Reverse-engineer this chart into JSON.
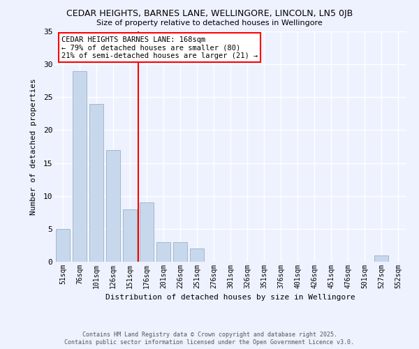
{
  "title": "CEDAR HEIGHTS, BARNES LANE, WELLINGORE, LINCOLN, LN5 0JB",
  "subtitle": "Size of property relative to detached houses in Wellingore",
  "xlabel": "Distribution of detached houses by size in Wellingore",
  "ylabel": "Number of detached properties",
  "bin_labels": [
    "51sqm",
    "76sqm",
    "101sqm",
    "126sqm",
    "151sqm",
    "176sqm",
    "201sqm",
    "226sqm",
    "251sqm",
    "276sqm",
    "301sqm",
    "326sqm",
    "351sqm",
    "376sqm",
    "401sqm",
    "426sqm",
    "451sqm",
    "476sqm",
    "501sqm",
    "527sqm",
    "552sqm"
  ],
  "bar_values": [
    5,
    29,
    24,
    17,
    8,
    9,
    3,
    3,
    2,
    0,
    0,
    0,
    0,
    0,
    0,
    0,
    0,
    0,
    0,
    1,
    0
  ],
  "bar_color": "#c8d8ec",
  "bar_edge_color": "#a0b8cc",
  "vline_color": "red",
  "annotation_line1": "CEDAR HEIGHTS BARNES LANE: 168sqm",
  "annotation_line2": "← 79% of detached houses are smaller (80)",
  "annotation_line3": "21% of semi-detached houses are larger (21) →",
  "annotation_box_color": "white",
  "annotation_box_edge_color": "red",
  "ylim": [
    0,
    35
  ],
  "yticks": [
    0,
    5,
    10,
    15,
    20,
    25,
    30,
    35
  ],
  "background_color": "#eef2ff",
  "grid_color": "white",
  "footnote1": "Contains HM Land Registry data © Crown copyright and database right 2025.",
  "footnote2": "Contains public sector information licensed under the Open Government Licence v3.0."
}
